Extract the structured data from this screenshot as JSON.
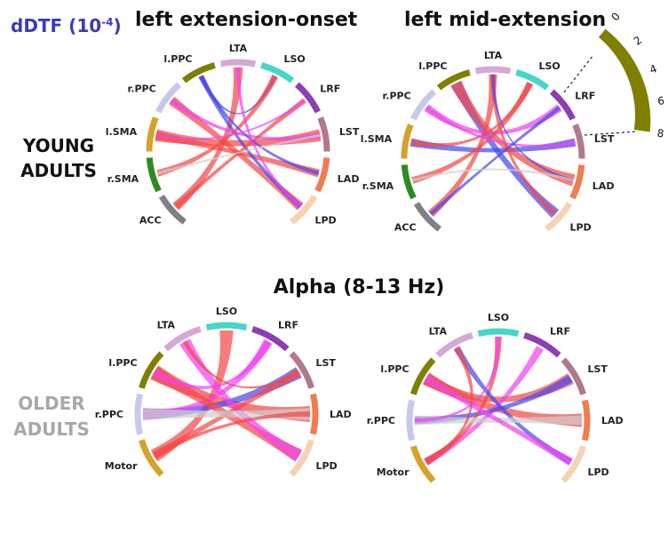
{
  "header": {
    "unit_label": "dDTF (10",
    "unit_exp": "-4",
    "unit_close": ")",
    "col1_title": "left extension-onset",
    "col2_title": "left mid-extension",
    "band_title": "Alpha (8-13 Hz)"
  },
  "row_labels": {
    "young_line1": "YOUNG",
    "young_line2": "ADULTS",
    "older_line1": "OLDER",
    "older_line2": "ADULTS"
  },
  "scale": {
    "ticks": [
      "0",
      "2",
      "4",
      "6",
      "8"
    ],
    "color": "#7f7f00"
  },
  "colors": {
    "red": "#f24a4a",
    "magenta": "#ee44ee",
    "blue": "#4a4aee",
    "gray": "#cfcfcf",
    "young_title": "#3b3bb8",
    "older_label": "#a8a8a8"
  },
  "diagrams": [
    {
      "id": "young-onset",
      "nodes": [
        {
          "label": "ACC",
          "color": "#808087"
        },
        {
          "label": "r.SMA",
          "color": "#2e8b24"
        },
        {
          "label": "l.SMA",
          "color": "#d4a22a"
        },
        {
          "label": "r.PPC",
          "color": "#c8c8ec"
        },
        {
          "label": "l.PPC",
          "color": "#7f7f00"
        },
        {
          "label": "LTA",
          "color": "#d5a8d5"
        },
        {
          "label": "LSO",
          "color": "#46d6c8"
        },
        {
          "label": "LRF",
          "color": "#8c3fb5"
        },
        {
          "label": "LST",
          "color": "#b07a8a"
        },
        {
          "label": "LAD",
          "color": "#f07c4f"
        },
        {
          "label": "LPD",
          "color": "#f6d2b2"
        }
      ],
      "links": [
        {
          "from": 2,
          "to": 8,
          "color": "red",
          "width": 9
        },
        {
          "from": 2,
          "to": 9,
          "color": "red",
          "width": 6
        },
        {
          "from": 0,
          "to": 5,
          "color": "red",
          "width": 7
        },
        {
          "from": 3,
          "to": 10,
          "color": "red",
          "width": 7
        },
        {
          "from": 4,
          "to": 10,
          "color": "blue",
          "width": 4
        },
        {
          "from": 4,
          "to": 6,
          "color": "blue",
          "width": 3
        },
        {
          "from": 3,
          "to": 8,
          "color": "magenta",
          "width": 4
        },
        {
          "from": 1,
          "to": 6,
          "color": "red",
          "width": 5
        },
        {
          "from": 0,
          "to": 7,
          "color": "red",
          "width": 4
        },
        {
          "from": 9,
          "to": 4,
          "color": "blue",
          "width": 3
        },
        {
          "from": 10,
          "to": 5,
          "color": "magenta",
          "width": 3
        },
        {
          "from": 1,
          "to": 8,
          "color": "gray",
          "width": 2
        },
        {
          "from": 2,
          "to": 7,
          "color": "magenta",
          "width": 2
        }
      ]
    },
    {
      "id": "young-mid",
      "nodes": [
        {
          "label": "ACC",
          "color": "#808087"
        },
        {
          "label": "r.SMA",
          "color": "#2e8b24"
        },
        {
          "label": "l.SMA",
          "color": "#d4a22a"
        },
        {
          "label": "r.PPC",
          "color": "#c8c8ec"
        },
        {
          "label": "l.PPC",
          "color": "#7f7f00"
        },
        {
          "label": "LTA",
          "color": "#d5a8d5"
        },
        {
          "label": "LSO",
          "color": "#46d6c8"
        },
        {
          "label": "LRF",
          "color": "#8c3fb5"
        },
        {
          "label": "LST",
          "color": "#b07a8a"
        },
        {
          "label": "LAD",
          "color": "#f07c4f"
        },
        {
          "label": "LPD",
          "color": "#f6d2b2"
        }
      ],
      "links": [
        {
          "from": 2,
          "to": 8,
          "color": "blue",
          "width": 6
        },
        {
          "from": 4,
          "to": 10,
          "color": "blue",
          "width": 8
        },
        {
          "from": 4,
          "to": 9,
          "color": "red",
          "width": 9
        },
        {
          "from": 3,
          "to": 7,
          "color": "magenta",
          "width": 6
        },
        {
          "from": 0,
          "to": 5,
          "color": "red",
          "width": 6
        },
        {
          "from": 1,
          "to": 6,
          "color": "red",
          "width": 5
        },
        {
          "from": 2,
          "to": 6,
          "color": "red",
          "width": 4
        },
        {
          "from": 10,
          "to": 5,
          "color": "red",
          "width": 4
        },
        {
          "from": 3,
          "to": 8,
          "color": "magenta",
          "width": 3
        },
        {
          "from": 0,
          "to": 7,
          "color": "blue",
          "width": 3
        },
        {
          "from": 9,
          "to": 5,
          "color": "blue",
          "width": 2
        },
        {
          "from": 1,
          "to": 9,
          "color": "gray",
          "width": 2
        }
      ]
    },
    {
      "id": "older-onset",
      "nodes": [
        {
          "label": "Motor",
          "color": "#d4a22a"
        },
        {
          "label": "r.PPC",
          "color": "#c8c8ec"
        },
        {
          "label": "l.PPC",
          "color": "#7f7f00"
        },
        {
          "label": "LTA",
          "color": "#d5a8d5"
        },
        {
          "label": "LSO",
          "color": "#46d6c8"
        },
        {
          "label": "LRF",
          "color": "#8c3fb5"
        },
        {
          "label": "LST",
          "color": "#b07a8a"
        },
        {
          "label": "LAD",
          "color": "#f07c4f"
        },
        {
          "label": "LPD",
          "color": "#f6d2b2"
        }
      ],
      "links": [
        {
          "from": 2,
          "to": 7,
          "color": "red",
          "width": 12
        },
        {
          "from": 0,
          "to": 4,
          "color": "red",
          "width": 10
        },
        {
          "from": 1,
          "to": 6,
          "color": "blue",
          "width": 9
        },
        {
          "from": 1,
          "to": 5,
          "color": "magenta",
          "width": 7
        },
        {
          "from": 2,
          "to": 8,
          "color": "red",
          "width": 10
        },
        {
          "from": 8,
          "to": 3,
          "color": "magenta",
          "width": 9
        },
        {
          "from": 0,
          "to": 6,
          "color": "red",
          "width": 6
        },
        {
          "from": 7,
          "to": 1,
          "color": "gray",
          "width": 9
        },
        {
          "from": 2,
          "to": 5,
          "color": "magenta",
          "width": 5
        },
        {
          "from": 0,
          "to": 7,
          "color": "red",
          "width": 4
        },
        {
          "from": 3,
          "to": 6,
          "color": "red",
          "width": 3
        }
      ]
    },
    {
      "id": "older-mid",
      "nodes": [
        {
          "label": "Motor",
          "color": "#d4a22a"
        },
        {
          "label": "r.PPC",
          "color": "#c8c8ec"
        },
        {
          "label": "l.PPC",
          "color": "#7f7f00"
        },
        {
          "label": "LTA",
          "color": "#d5a8d5"
        },
        {
          "label": "LSO",
          "color": "#46d6c8"
        },
        {
          "label": "LRF",
          "color": "#8c3fb5"
        },
        {
          "label": "LST",
          "color": "#b07a8a"
        },
        {
          "label": "LAD",
          "color": "#f07c4f"
        },
        {
          "label": "LPD",
          "color": "#f6d2b2"
        }
      ],
      "links": [
        {
          "from": 2,
          "to": 7,
          "color": "red",
          "width": 10
        },
        {
          "from": 2,
          "to": 6,
          "color": "red",
          "width": 9
        },
        {
          "from": 0,
          "to": 5,
          "color": "magenta",
          "width": 6
        },
        {
          "from": 1,
          "to": 6,
          "color": "blue",
          "width": 6
        },
        {
          "from": 0,
          "to": 4,
          "color": "red",
          "width": 5
        },
        {
          "from": 8,
          "to": 3,
          "color": "blue",
          "width": 5
        },
        {
          "from": 1,
          "to": 7,
          "color": "gray",
          "width": 7
        },
        {
          "from": 2,
          "to": 8,
          "color": "magenta",
          "width": 6
        },
        {
          "from": 0,
          "to": 3,
          "color": "red",
          "width": 4
        },
        {
          "from": 1,
          "to": 4,
          "color": "magenta",
          "width": 3
        }
      ]
    }
  ]
}
